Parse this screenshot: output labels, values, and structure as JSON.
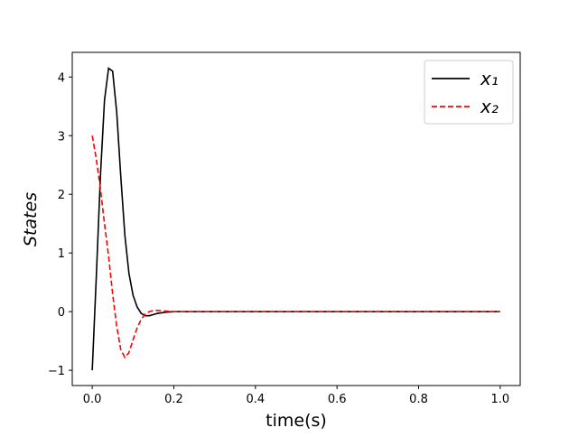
{
  "chart_data": {
    "type": "line",
    "xlabel": "time(s)",
    "ylabel": "States",
    "x": [
      0,
      0.01,
      0.02,
      0.03,
      0.04,
      0.05,
      0.06,
      0.07,
      0.08,
      0.09,
      0.1,
      0.11,
      0.12,
      0.13,
      0.14,
      0.15,
      0.16,
      0.18,
      0.2,
      0.25,
      0.3,
      0.4,
      0.5,
      0.6,
      0.7,
      0.8,
      0.9,
      1.0
    ],
    "series": [
      {
        "name": "x₁",
        "color": "#000000",
        "linestyle": "solid",
        "values": [
          -1,
          0.6,
          2.3,
          3.6,
          4.15,
          4.1,
          3.4,
          2.3,
          1.3,
          0.65,
          0.28,
          0.08,
          -0.03,
          -0.07,
          -0.07,
          -0.05,
          -0.03,
          -0.01,
          0,
          0,
          0,
          0,
          0,
          0,
          0,
          0,
          0,
          0
        ]
      },
      {
        "name": "x₂",
        "color": "#ff0000",
        "linestyle": "dashed",
        "values": [
          3,
          2.6,
          2.1,
          1.5,
          0.95,
          0.3,
          -0.25,
          -0.65,
          -0.78,
          -0.7,
          -0.48,
          -0.28,
          -0.13,
          -0.04,
          0,
          0.02,
          0.02,
          0.01,
          0,
          0,
          0,
          0,
          0,
          0,
          0,
          0,
          0,
          0
        ]
      }
    ],
    "xlim": [
      -0.049,
      1.049
    ],
    "ylim": [
      -1.26,
      4.42
    ],
    "xticks": [
      {
        "value": 0,
        "label": "0.0"
      },
      0.2,
      0.4,
      0.6,
      0.8,
      {
        "value": 1,
        "label": "1.0"
      }
    ],
    "yticks": [
      {
        "value": -1,
        "label": "−1"
      },
      0,
      1,
      2,
      3,
      4
    ],
    "legend": "upper-right"
  }
}
